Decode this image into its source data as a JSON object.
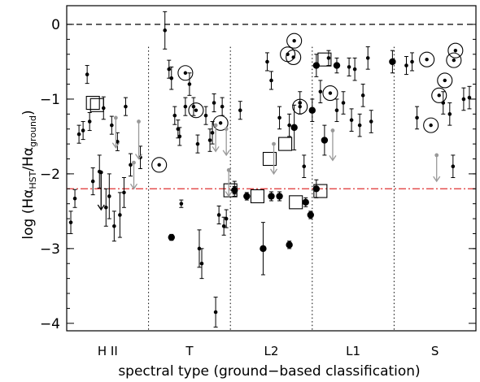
{
  "chart_data": {
    "type": "scatter",
    "xlabel": "spectral type (ground−based classification)",
    "ylabel_parts": {
      "log": "log",
      "open": "(H",
      "alpha1": "α",
      "sub1": "HST",
      "slash": "/H",
      "alpha2": "α",
      "sub2": "ground",
      "close": ")"
    },
    "ylim": [
      -4.1,
      0.25
    ],
    "xlim": [
      0,
      5
    ],
    "yticks": [
      0,
      -1,
      -2,
      -3,
      -4
    ],
    "yticklabels": [
      "0",
      "−1",
      "−2",
      "−3",
      "−4"
    ],
    "categories": [
      "H II",
      "T",
      "L2",
      "L1",
      "S"
    ],
    "category_boundaries": [
      1,
      2,
      3,
      4
    ],
    "reference_lines": [
      {
        "y": 0,
        "style": "dashed",
        "color": "#000000"
      },
      {
        "y": -2.2,
        "style": "dash-dot",
        "color": "#e03030"
      }
    ],
    "grid": false,
    "points_small": [
      {
        "x": 0.05,
        "y": -2.65,
        "e": 0.15
      },
      {
        "x": 0.1,
        "y": -2.33,
        "e": 0.12
      },
      {
        "x": 0.15,
        "y": -1.47,
        "e": 0.12
      },
      {
        "x": 0.2,
        "y": -1.42,
        "e": 0.12
      },
      {
        "x": 0.25,
        "y": -0.67,
        "e": 0.12
      },
      {
        "x": 0.28,
        "y": -1.3,
        "e": 0.12
      },
      {
        "x": 0.32,
        "y": -2.1,
        "e": 0.18
      },
      {
        "x": 0.4,
        "y": -1.97,
        "e": 0.22
      },
      {
        "x": 0.45,
        "y": -1.12,
        "e": 0.15
      },
      {
        "x": 0.48,
        "y": -2.45,
        "e": 0.25
      },
      {
        "x": 0.52,
        "y": -2.3,
        "e": 0.3
      },
      {
        "x": 0.55,
        "y": -1.35,
        "e": 0.12
      },
      {
        "x": 0.58,
        "y": -2.7,
        "e": 0.2
      },
      {
        "x": 0.62,
        "y": -1.57,
        "e": 0.12
      },
      {
        "x": 0.65,
        "y": -2.55,
        "e": 0.3
      },
      {
        "x": 0.7,
        "y": -2.25,
        "e": 0.2
      },
      {
        "x": 0.72,
        "y": -1.1,
        "e": 0.12
      },
      {
        "x": 0.78,
        "y": -1.88,
        "e": 0.15
      },
      {
        "x": 0.9,
        "y": -1.78,
        "e": 0.15
      },
      {
        "x": 1.2,
        "y": -0.08,
        "e": 0.25
      },
      {
        "x": 1.25,
        "y": -0.6,
        "e": 0.12
      },
      {
        "x": 1.28,
        "y": -0.72,
        "e": 0.15
      },
      {
        "x": 1.32,
        "y": -1.22,
        "e": 0.12
      },
      {
        "x": 1.36,
        "y": -1.4,
        "e": 0.12
      },
      {
        "x": 1.38,
        "y": -1.5,
        "e": 0.12
      },
      {
        "x": 1.4,
        "y": -2.4,
        "e": 0.05
      },
      {
        "x": 1.45,
        "y": -1.1,
        "e": 0.12
      },
      {
        "x": 1.5,
        "y": -0.8,
        "e": 0.15
      },
      {
        "x": 1.55,
        "y": -1.1,
        "e": 0.12
      },
      {
        "x": 1.6,
        "y": -1.6,
        "e": 0.12
      },
      {
        "x": 1.62,
        "y": -3.0,
        "e": 0.25
      },
      {
        "x": 1.65,
        "y": -3.2,
        "e": 0.2
      },
      {
        "x": 1.7,
        "y": -1.22,
        "e": 0.12
      },
      {
        "x": 1.75,
        "y": -1.55,
        "e": 0.15
      },
      {
        "x": 1.78,
        "y": -1.45,
        "e": 0.15
      },
      {
        "x": 1.8,
        "y": -1.05,
        "e": 0.12
      },
      {
        "x": 1.82,
        "y": -3.85,
        "e": 0.2
      },
      {
        "x": 1.86,
        "y": -2.55,
        "e": 0.12
      },
      {
        "x": 1.9,
        "y": -1.1,
        "e": 0.12
      },
      {
        "x": 1.92,
        "y": -2.7,
        "e": 0.12
      },
      {
        "x": 1.95,
        "y": -2.6,
        "e": 0.12
      },
      {
        "x": 2.05,
        "y": -2.2,
        "e": 0.1
      },
      {
        "x": 2.12,
        "y": -1.15,
        "e": 0.12
      },
      {
        "x": 2.45,
        "y": -0.5,
        "e": 0.12
      },
      {
        "x": 2.5,
        "y": -0.75,
        "e": 0.12
      },
      {
        "x": 2.6,
        "y": -1.25,
        "e": 0.15
      },
      {
        "x": 2.72,
        "y": -1.35,
        "e": 0.15
      },
      {
        "x": 2.85,
        "y": -1.05,
        "e": 0.15
      },
      {
        "x": 2.9,
        "y": -1.9,
        "e": 0.15
      },
      {
        "x": 3.1,
        "y": -0.9,
        "e": 0.15
      },
      {
        "x": 3.2,
        "y": -0.45,
        "e": 0.1
      },
      {
        "x": 3.3,
        "y": -1.15,
        "e": 0.15
      },
      {
        "x": 3.38,
        "y": -1.05,
        "e": 0.15
      },
      {
        "x": 3.45,
        "y": -0.57,
        "e": 0.12
      },
      {
        "x": 3.48,
        "y": -1.28,
        "e": 0.15
      },
      {
        "x": 3.52,
        "y": -0.6,
        "e": 0.15
      },
      {
        "x": 3.58,
        "y": -1.35,
        "e": 0.15
      },
      {
        "x": 3.62,
        "y": -0.95,
        "e": 0.15
      },
      {
        "x": 3.68,
        "y": -0.45,
        "e": 0.15
      },
      {
        "x": 3.72,
        "y": -1.3,
        "e": 0.15
      },
      {
        "x": 4.15,
        "y": -0.55,
        "e": 0.12
      },
      {
        "x": 4.22,
        "y": -0.5,
        "e": 0.12
      },
      {
        "x": 4.28,
        "y": -1.25,
        "e": 0.15
      },
      {
        "x": 4.6,
        "y": -1.05,
        "e": 0.15
      },
      {
        "x": 4.68,
        "y": -1.2,
        "e": 0.15
      },
      {
        "x": 4.72,
        "y": -1.9,
        "e": 0.15
      },
      {
        "x": 4.85,
        "y": -1.0,
        "e": 0.15
      },
      {
        "x": 4.92,
        "y": -0.98,
        "e": 0.15
      }
    ],
    "points_large": [
      {
        "x": 1.28,
        "y": -2.85,
        "e": 0.04
      },
      {
        "x": 2.05,
        "y": -2.22,
        "e": 0.05
      },
      {
        "x": 2.2,
        "y": -2.3,
        "e": 0.05
      },
      {
        "x": 2.4,
        "y": -3.0,
        "e": 0.35
      },
      {
        "x": 2.5,
        "y": -2.3,
        "e": 0.06
      },
      {
        "x": 2.6,
        "y": -2.3,
        "e": 0.06
      },
      {
        "x": 2.72,
        "y": -2.95,
        "e": 0.05
      },
      {
        "x": 2.78,
        "y": -1.38,
        "e": 0.3
      },
      {
        "x": 2.92,
        "y": -2.38,
        "e": 0.06
      },
      {
        "x": 2.98,
        "y": -2.55,
        "e": 0.05
      },
      {
        "x": 3.0,
        "y": -1.15,
        "e": 0.15
      },
      {
        "x": 3.05,
        "y": -2.2,
        "e": 0.12
      },
      {
        "x": 3.15,
        "y": -1.55,
        "e": 0.2
      },
      {
        "x": 3.05,
        "y": -0.55,
        "e": 0.15
      },
      {
        "x": 3.3,
        "y": -0.55,
        "e": 0.1
      },
      {
        "x": 3.98,
        "y": -0.5,
        "e": 0.15
      }
    ],
    "circled": [
      {
        "x": 1.13,
        "y": -1.88
      },
      {
        "x": 1.45,
        "y": -0.65
      },
      {
        "x": 1.58,
        "y": -1.15
      },
      {
        "x": 1.88,
        "y": -1.32
      },
      {
        "x": 2.7,
        "y": -0.4
      },
      {
        "x": 2.77,
        "y": -0.44
      },
      {
        "x": 2.85,
        "y": -1.1
      },
      {
        "x": 2.78,
        "y": -0.22
      },
      {
        "x": 3.22,
        "y": -0.92
      },
      {
        "x": 4.4,
        "y": -0.47
      },
      {
        "x": 4.55,
        "y": -0.95
      },
      {
        "x": 4.62,
        "y": -0.75
      },
      {
        "x": 4.45,
        "y": -1.35
      },
      {
        "x": 4.73,
        "y": -0.48
      },
      {
        "x": 4.75,
        "y": -0.35
      }
    ],
    "boxed": [
      {
        "x": 0.32,
        "y": -1.05
      },
      {
        "x": 0.37,
        "y": -1.08
      },
      {
        "x": 2.0,
        "y": -2.22
      },
      {
        "x": 2.33,
        "y": -2.3
      },
      {
        "x": 2.48,
        "y": -1.8
      },
      {
        "x": 2.67,
        "y": -1.6
      },
      {
        "x": 2.8,
        "y": -2.38
      },
      {
        "x": 3.1,
        "y": -2.23
      },
      {
        "x": 3.15,
        "y": -0.47
      }
    ],
    "upper_limits": [
      {
        "x": 0.42,
        "y": -1.98,
        "len": 0.5,
        "color": "#000000"
      },
      {
        "x": 0.6,
        "y": -1.25,
        "len": 0.4,
        "color": "#999999"
      },
      {
        "x": 0.82,
        "y": -1.85,
        "len": 0.35,
        "color": "#999999"
      },
      {
        "x": 0.88,
        "y": -1.3,
        "len": 0.5,
        "color": "#999999"
      },
      {
        "x": 1.82,
        "y": -1.35,
        "len": 0.35,
        "color": "#999999"
      },
      {
        "x": 1.95,
        "y": -1.4,
        "len": 0.35,
        "color": "#999999"
      },
      {
        "x": 1.98,
        "y": -1.95,
        "len": 0.35,
        "color": "#999999"
      },
      {
        "x": 2.53,
        "y": -1.6,
        "len": 0.4,
        "color": "#999999"
      },
      {
        "x": 3.25,
        "y": -1.42,
        "len": 0.4,
        "color": "#999999"
      },
      {
        "x": 4.52,
        "y": -1.75,
        "len": 0.35,
        "color": "#999999"
      }
    ]
  }
}
